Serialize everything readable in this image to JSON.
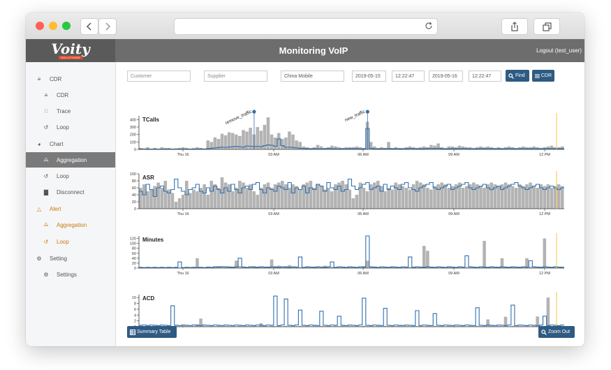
{
  "browser": {
    "back_icon": "chevron-left-icon",
    "forward_icon": "chevron-right-icon",
    "reload_icon": "reload-icon",
    "share_icon": "share-icon",
    "tabs_icon": "tabs-icon",
    "traffic_colors": [
      "#ff5f57",
      "#febc2e",
      "#28c840"
    ]
  },
  "header": {
    "logo_text": "Voity",
    "logo_sub": "SOLUTIONS",
    "title": "Monitoring VoIP",
    "logout": "Logout (test_user)"
  },
  "sidebar": {
    "items": [
      {
        "label": "CDR",
        "icon": "list-icon",
        "level": 0
      },
      {
        "label": "CDR",
        "icon": "list-icon",
        "level": 1
      },
      {
        "label": "Trace",
        "icon": "trace-icon",
        "level": 1
      },
      {
        "label": "Loop",
        "icon": "loop-icon",
        "level": 1
      },
      {
        "label": "Chart",
        "icon": "pie-chart-icon",
        "level": 0
      },
      {
        "label": "Aggregation",
        "icon": "line-chart-icon",
        "level": 1,
        "active": true
      },
      {
        "label": "Loop",
        "icon": "loop-icon",
        "level": 1
      },
      {
        "label": "Disconnect",
        "icon": "bar-chart-icon",
        "level": 1
      },
      {
        "label": "Alert",
        "icon": "bell-icon",
        "level": 0
      },
      {
        "label": "Aggregation",
        "icon": "line-chart-icon",
        "level": 1
      },
      {
        "label": "Loop",
        "icon": "loop-icon",
        "level": 1
      },
      {
        "label": "Setting",
        "icon": "gear-icon",
        "level": 0
      },
      {
        "label": "Settings",
        "icon": "gear-icon",
        "level": 1
      }
    ]
  },
  "filters": {
    "customer_placeholder": "Customer",
    "supplier_placeholder": "Supplier",
    "destination": "China Mobile",
    "start_date": "2019-05-15",
    "start_time": "12:22:47",
    "end_date": "2019-05-16",
    "end_time": "12:22:47",
    "find_label": "Find",
    "cdr_label": "CDR"
  },
  "footer": {
    "summary_label": "Summary Table",
    "zoom_label": "Zoom Out"
  },
  "colors": {
    "primary": "#2f5b83",
    "line": "#2f6fae",
    "bar": "#b3b3b3",
    "marker": "#f3c24a",
    "alert": "#c77a0a",
    "active_bg": "#7a7a7a"
  },
  "chart_data": [
    {
      "type": "bar",
      "title": "TCalls",
      "ylim": [
        0,
        450
      ],
      "yticks": [
        0,
        100,
        200,
        300,
        400
      ],
      "xticks": [
        "Thu 16",
        "03 AM",
        "06 AM",
        "09 AM",
        "12 PM"
      ],
      "series": [
        {
          "values": [
            20,
            10,
            30,
            10,
            20,
            10,
            30,
            20,
            20,
            10,
            10,
            20,
            30,
            20,
            10,
            20,
            30,
            20,
            10,
            120,
            100,
            160,
            140,
            210,
            190,
            230,
            220,
            200,
            180,
            260,
            240,
            290,
            200,
            300,
            250,
            330,
            430,
            200,
            160,
            220,
            140,
            160,
            240,
            200,
            120,
            100,
            40,
            30,
            20,
            30,
            60,
            40,
            20,
            30,
            50,
            40,
            30,
            20,
            30,
            30,
            30,
            40,
            30,
            20,
            370,
            100,
            40,
            20,
            30,
            20,
            100,
            20,
            30,
            20,
            20,
            30,
            40,
            30,
            20,
            30,
            40,
            30,
            60,
            50,
            80,
            30,
            20,
            40,
            40,
            30,
            50,
            40,
            30,
            30,
            20,
            30,
            40,
            30,
            40,
            30,
            20,
            30,
            20,
            30,
            40,
            30,
            20,
            30,
            40,
            30,
            30,
            40,
            30,
            20,
            30,
            40,
            50,
            30,
            30,
            40
          ]
        },
        {
          "values": [
            5,
            5,
            4,
            3,
            5,
            4,
            3,
            4,
            5,
            4,
            6,
            5,
            4,
            5,
            4,
            3,
            5,
            6,
            5,
            10,
            15,
            20,
            25,
            30,
            28,
            32,
            36,
            40,
            35,
            30,
            45,
            42,
            38,
            40,
            36,
            50,
            60,
            55,
            40,
            140,
            50,
            30,
            30,
            25,
            20,
            15,
            12,
            10,
            8,
            10,
            9,
            8,
            10,
            12,
            10,
            9,
            8,
            10,
            9,
            10,
            11,
            10,
            9,
            8,
            280,
            15,
            10,
            8,
            9,
            10,
            12,
            8,
            10,
            9,
            8,
            10,
            12,
            11,
            10,
            9,
            10,
            12,
            14,
            12,
            15,
            10,
            8,
            10,
            12,
            10,
            11,
            12,
            10,
            9,
            8,
            10,
            11,
            10,
            12,
            11,
            9,
            10,
            9,
            10,
            11,
            10,
            9,
            10,
            11,
            10,
            10,
            11,
            10,
            9,
            10,
            11,
            12,
            10,
            10,
            11
          ]
        }
      ],
      "annotations": [
        {
          "label": "remove_traffic",
          "index": 32
        },
        {
          "label": "new_traffic",
          "index": 64
        }
      ]
    },
    {
      "type": "bar",
      "title": "ASR",
      "ylim": [
        0,
        100
      ],
      "yticks": [
        0,
        20,
        40,
        60,
        80,
        100
      ],
      "xticks": [
        "Thu 16",
        "03 AM",
        "06 AM",
        "09 AM",
        "12 PM"
      ],
      "series": [
        {
          "values": [
            60,
            70,
            50,
            55,
            65,
            75,
            60,
            80,
            55,
            45,
            20,
            30,
            40,
            80,
            45,
            55,
            50,
            60,
            70,
            40,
            80,
            70,
            60,
            90,
            75,
            70,
            50,
            60,
            80,
            75,
            60,
            70,
            50,
            40,
            60,
            70,
            75,
            60,
            70,
            75,
            80,
            70,
            60,
            70,
            65,
            55,
            70,
            75,
            80,
            60,
            70,
            65,
            55,
            60,
            50,
            70,
            75,
            80,
            70,
            55,
            30,
            40,
            75,
            60,
            50,
            70,
            75,
            80,
            65,
            50,
            60,
            55,
            75,
            70,
            65,
            60,
            55,
            70,
            80,
            75,
            70,
            60,
            55,
            65,
            70,
            75,
            70,
            60,
            65,
            70,
            75,
            60,
            65,
            70,
            75,
            70,
            65,
            60,
            70,
            75,
            70,
            65,
            70,
            75,
            70,
            65,
            60,
            70,
            65,
            70,
            75,
            65,
            60,
            70,
            65,
            70,
            60,
            65,
            70,
            65
          ]
        },
        {
          "values": [
            50,
            40,
            70,
            55,
            35,
            60,
            65,
            50,
            45,
            55,
            85,
            60,
            50,
            40,
            55,
            60,
            70,
            50,
            45,
            60,
            50,
            65,
            55,
            45,
            60,
            50,
            70,
            55,
            45,
            60,
            65,
            55,
            70,
            75,
            55,
            45,
            60,
            55,
            50,
            65,
            60,
            55,
            75,
            45,
            60,
            55,
            65,
            45,
            60,
            55,
            70,
            65,
            50,
            75,
            60,
            55,
            65,
            50,
            55,
            85,
            65,
            55,
            60,
            70,
            75,
            55,
            60,
            65,
            50,
            70,
            55,
            65,
            60,
            55,
            70,
            75,
            60,
            55,
            50,
            60,
            65,
            70,
            75,
            60,
            55,
            60,
            65,
            70,
            55,
            60,
            65,
            70,
            75,
            60,
            55,
            60,
            65,
            70,
            60,
            55,
            60,
            65,
            55,
            60,
            65,
            70,
            75,
            65,
            60,
            55,
            60,
            65,
            70,
            60,
            55,
            60,
            65,
            60,
            55,
            60
          ]
        }
      ]
    },
    {
      "type": "bar",
      "title": "Minutes",
      "ylim": [
        0,
        130
      ],
      "yticks": [
        0,
        20,
        40,
        60,
        80,
        100,
        120
      ],
      "xticks": [
        "Thu 16",
        "03 AM",
        "06 AM",
        "09 AM",
        "12 PM"
      ],
      "series": [
        {
          "values": [
            2,
            1,
            2,
            1,
            2,
            1,
            2,
            1,
            2,
            1,
            3,
            2,
            1,
            2,
            4,
            2,
            40,
            3,
            2,
            5,
            3,
            4,
            8,
            6,
            5,
            7,
            6,
            30,
            8,
            6,
            4,
            6,
            8,
            6,
            5,
            4,
            6,
            35,
            8,
            10,
            6,
            8,
            12,
            6,
            5,
            4,
            3,
            5,
            4,
            6,
            5,
            4,
            10,
            6,
            5,
            4,
            3,
            5,
            4,
            6,
            5,
            4,
            3,
            8,
            30,
            5,
            6,
            4,
            3,
            5,
            4,
            6,
            5,
            4,
            3,
            5,
            4,
            6,
            3,
            5,
            90,
            70,
            5,
            4,
            3,
            5,
            4,
            6,
            5,
            4,
            3,
            5,
            4,
            6,
            5,
            4,
            3,
            110,
            5,
            4,
            3,
            5,
            40,
            6,
            5,
            4,
            3,
            5,
            4,
            40,
            5,
            4,
            3,
            5,
            120,
            6,
            5,
            4,
            3,
            5
          ]
        },
        {
          "values": [
            3,
            2,
            3,
            2,
            3,
            2,
            3,
            2,
            3,
            2,
            3,
            25,
            2,
            3,
            2,
            3,
            2,
            3,
            2,
            4,
            3,
            5,
            4,
            6,
            5,
            4,
            3,
            5,
            40,
            4,
            3,
            5,
            4,
            3,
            5,
            4,
            3,
            5,
            4,
            3,
            5,
            4,
            3,
            5,
            4,
            45,
            3,
            5,
            4,
            3,
            5,
            4,
            3,
            5,
            25,
            3,
            5,
            4,
            3,
            5,
            4,
            3,
            5,
            4,
            130,
            5,
            4,
            3,
            5,
            4,
            3,
            5,
            4,
            3,
            5,
            4,
            45,
            3,
            5,
            4,
            3,
            5,
            4,
            3,
            5,
            4,
            3,
            5,
            4,
            3,
            5,
            4,
            50,
            5,
            4,
            3,
            5,
            4,
            3,
            5,
            4,
            3,
            5,
            4,
            3,
            5,
            4,
            3,
            5,
            4,
            30,
            5,
            4,
            3,
            5,
            4,
            3,
            5,
            4,
            3
          ]
        }
      ]
    },
    {
      "type": "bar",
      "title": "ACD",
      "ylim": [
        0,
        11
      ],
      "yticks": [
        0,
        2,
        4,
        6,
        8,
        10
      ],
      "xticks": [
        "Thu 16",
        "03 AM",
        "06 AM",
        "09 AM",
        "12 PM"
      ],
      "series": [
        {
          "values": [
            0.3,
            0.2,
            0.3,
            0.2,
            0.3,
            0.2,
            0.3,
            0.2,
            0.3,
            0.2,
            0.3,
            0.2,
            0.5,
            0.3,
            0.2,
            0.3,
            0.8,
            2.8,
            0.3,
            0.2,
            0.3,
            0.2,
            0.3,
            0.2,
            0.3,
            0.2,
            0.3,
            0.2,
            0.3,
            0.2,
            0.3,
            0.2,
            0.3,
            0.2,
            1.2,
            0.3,
            0.2,
            0.3,
            0.2,
            0.3,
            0.2,
            0.3,
            0.2,
            0.3,
            0.2,
            0.3,
            0.2,
            0.3,
            0.2,
            0.3,
            0.2,
            0.3,
            0.2,
            0.3,
            0.2,
            0.3,
            0.2,
            0.3,
            0.2,
            0.3,
            0.2,
            0.3,
            0.2,
            0.3,
            0.2,
            0.3,
            0.2,
            0.3,
            0.2,
            0.3,
            0.2,
            0.3,
            0.2,
            0.3,
            0.2,
            0.3,
            0.2,
            0.3,
            0.2,
            0.3,
            0.2,
            0.3,
            0.2,
            0.3,
            0.2,
            0.3,
            0.2,
            0.3,
            0.2,
            0.3,
            0.2,
            0.3,
            0.2,
            0.3,
            0.2,
            0.3,
            0.2,
            0.3,
            2.5,
            0.3,
            0.2,
            0.3,
            0.2,
            3.4,
            0.2,
            0.3,
            0.2,
            0.3,
            0.2,
            0.3,
            0.2,
            0.3,
            3.5,
            0.3,
            0.2,
            10.0,
            0.2,
            0.3,
            0.5,
            0.3
          ]
        },
        {
          "values": [
            0.5,
            0.6,
            0.4,
            0.6,
            0.5,
            0.4,
            0.6,
            0.5,
            0.4,
            7.2,
            0.5,
            0.4,
            0.6,
            0.5,
            0.4,
            0.6,
            0.5,
            0.4,
            0.6,
            0.5,
            0.4,
            0.6,
            0.5,
            0.4,
            0.6,
            0.5,
            0.4,
            0.6,
            0.5,
            0.4,
            0.6,
            0.5,
            0.4,
            0.6,
            0.5,
            0.4,
            0.6,
            0.5,
            10.5,
            0.4,
            0.6,
            9.5,
            0.5,
            0.4,
            0.6,
            5.7,
            0.5,
            0.4,
            0.6,
            0.5,
            0.4,
            5.3,
            0.5,
            0.4,
            0.6,
            0.5,
            3.6,
            0.5,
            0.4,
            0.6,
            0.5,
            0.4,
            0.6,
            9.8,
            0.5,
            0.4,
            0.6,
            0.5,
            0.4,
            6.3,
            0.5,
            0.4,
            0.6,
            0.5,
            0.4,
            0.6,
            0.5,
            0.4,
            5.5,
            0.4,
            0.6,
            0.5,
            0.4,
            4.5,
            0.5,
            0.4,
            0.6,
            0.5,
            0.4,
            0.6,
            0.5,
            0.4,
            0.6,
            0.5,
            0.4,
            6.5,
            0.5,
            0.4,
            0.6,
            0.5,
            0.4,
            0.6,
            0.5,
            0.4,
            0.6,
            7.4,
            0.4,
            0.6,
            0.5,
            0.4,
            0.6,
            0.5,
            0.4,
            0.6,
            3.6,
            0.4,
            0.6,
            0.5,
            0.4,
            0.6
          ]
        }
      ]
    }
  ]
}
